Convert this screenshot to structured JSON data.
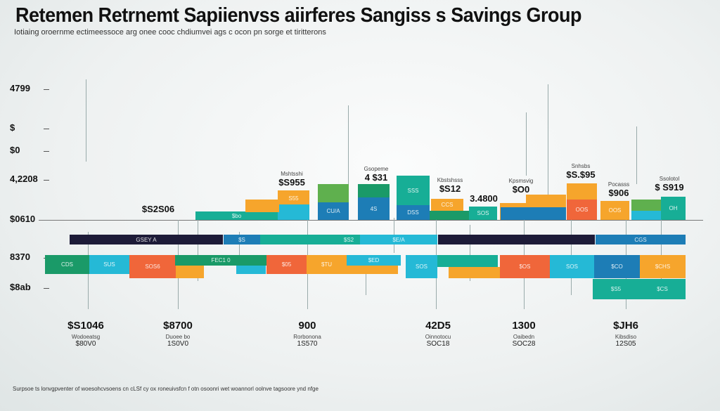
{
  "chart_data": {
    "type": "bar",
    "title": "Retemen Retrnemt Sapiienvss aiirferes Sangiss s Savings Group",
    "subtitle": "Iotiaing oroernme ectimeessoce arg onee cooc chdiumvei ags c ocon pn sorge et tiritterons",
    "y_tick_labels": [
      "4799",
      "$",
      "$0",
      "4,2208",
      "$0610",
      "8370",
      "$8ab"
    ],
    "annotations": [
      {
        "small": "",
        "big": "$S2S06"
      },
      {
        "small": "Mshtsshi",
        "big": "$S955"
      },
      {
        "small": "Gsopeme",
        "big": "4 $31"
      },
      {
        "small": "Kbstshsss",
        "big": "$S12"
      },
      {
        "small": "",
        "big": "3.4800"
      },
      {
        "small": "Kpsmsvig",
        "big": "$O0"
      },
      {
        "small": "Snhsbs",
        "big": "$S.$95"
      },
      {
        "small": "Pocasss",
        "big": "$906"
      },
      {
        "small": "Ssolotol",
        "big": "$ S919"
      }
    ],
    "bar_labels": [
      "$bo",
      "S55",
      "CU/A",
      "4S",
      "SSS",
      "DSS",
      "CCS",
      "SOS",
      "OOS",
      "OOS",
      "OH",
      "GSEY A",
      "$S",
      "$S2",
      "$E/A",
      "CGS",
      "CDS",
      "SUS",
      "SOS6",
      "FEC1 0",
      "$05",
      "$TU",
      "$ED",
      "SOS",
      "$OS",
      "SOS",
      "$CO",
      "$CHS",
      "$S5",
      "$CS"
    ],
    "groups": [
      {
        "value": "$S1046",
        "label": "Wodoeatsg",
        "sub": "$80V0"
      },
      {
        "value": "$8700",
        "label": "Duoee bo",
        "sub": "1S0V0"
      },
      {
        "value": "900",
        "label": "Rorbonona",
        "sub": "1S570"
      },
      {
        "value": "42D5",
        "label": "Oinnotocu",
        "sub": "SOC18"
      },
      {
        "value": "1300",
        "label": "Oaibedn",
        "sub": "SOC28"
      },
      {
        "value": "$JH6",
        "label": "Kibsdiso",
        "sub": "12S05"
      }
    ],
    "footnote": "Surpsoe ts lonvgpventer of woesohcvsoens cn cLSf cy ox roneuivsfcn f otn osoonri wet woannorl oolnve tagsoore ynd nfge",
    "colors": {
      "green": "#1a9a68",
      "teal": "#17ae96",
      "cyan": "#25b9d6",
      "blue": "#1d7db6",
      "orange": "#f6a52c",
      "red": "#f0663a",
      "navy": "#1d1b38",
      "lightgreen": "#5fb04e"
    }
  }
}
